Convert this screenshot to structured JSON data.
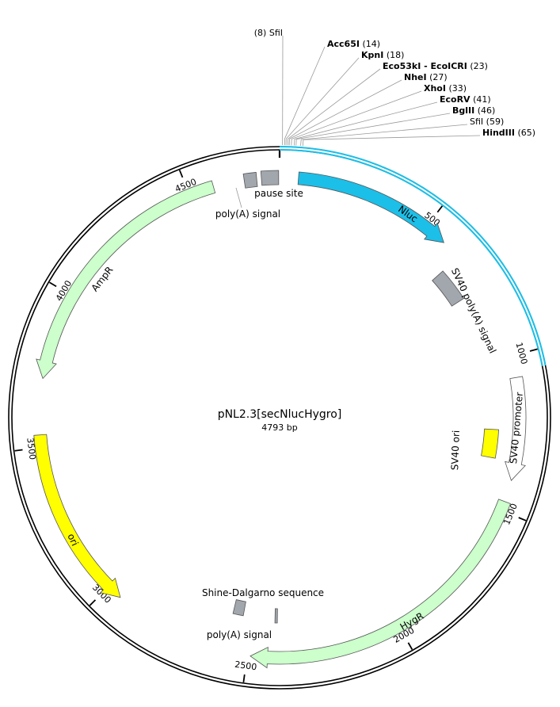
{
  "plasmid": {
    "name": "pNL2.3[secNlucHygro]",
    "length_label": "4793 bp",
    "length": 4793
  },
  "restriction_sites": [
    {
      "name": "SfiI",
      "pos": 8,
      "pos_label": "(8)",
      "bold": false
    },
    {
      "name": "Acc65I",
      "pos": 14,
      "pos_label": "(14)",
      "bold": true
    },
    {
      "name": "KpnI",
      "pos": 18,
      "pos_label": "(18)",
      "bold": true
    },
    {
      "name": "Eco53kI - EcoICRI",
      "pos": 23,
      "pos_label": "(23)",
      "bold": true
    },
    {
      "name": "NheI",
      "pos": 27,
      "pos_label": "(27)",
      "bold": true
    },
    {
      "name": "XhoI",
      "pos": 33,
      "pos_label": "(33)",
      "bold": true
    },
    {
      "name": "EcoRV",
      "pos": 41,
      "pos_label": "(41)",
      "bold": true
    },
    {
      "name": "BglII",
      "pos": 46,
      "pos_label": "(46)",
      "bold": true
    },
    {
      "name": "SfiI",
      "pos": 59,
      "pos_label": "(59)",
      "bold": false
    },
    {
      "name": "HindIII",
      "pos": 65,
      "pos_label": "(65)",
      "bold": true
    }
  ],
  "features": [
    {
      "label": "Nluc",
      "start": 60,
      "end": 575,
      "type": "arrow",
      "color": "#1cbfe8"
    },
    {
      "label": "SV40 poly(A) signal",
      "start": 640,
      "end": 760,
      "type": "box",
      "color": "#a2a7ae"
    },
    {
      "label": "SV40 promoter",
      "start": 1070,
      "end": 1400,
      "type": "arrow",
      "color": "#ffffff"
    },
    {
      "label": "SV40 ori",
      "start": 1240,
      "end": 1340,
      "type": "box",
      "color": "#ffff00"
    },
    {
      "label": "HygR",
      "start": 1470,
      "end": 2490,
      "type": "arrow",
      "color": "#ccffcc"
    },
    {
      "label": "Shine-Dalgarno sequence",
      "start": 2405,
      "end": 2414,
      "type": "box",
      "color": "#a2a7ae"
    },
    {
      "label": "poly(A) signal",
      "start": 2535,
      "end": 2575,
      "type": "box",
      "color": "#a2a7ae"
    },
    {
      "label": "ori",
      "start": 2950,
      "end": 3540,
      "type": "arrow_ccw",
      "color": "#ffff00"
    },
    {
      "label": "AmpR",
      "start": 3720,
      "end": 4580,
      "type": "arrow_ccw",
      "color": "#ccffcc"
    },
    {
      "label": "poly(A) signal",
      "start": 4680,
      "end": 4720,
      "type": "box",
      "color": "#a2a7ae"
    },
    {
      "label": "pause site",
      "start": 4735,
      "end": 4790,
      "type": "box",
      "color": "#a2a7ae"
    }
  ],
  "highlight_region": {
    "start": 0,
    "end": 1050,
    "color": "#1cbfe8"
  },
  "ticks": [
    {
      "pos": 500,
      "label": "500"
    },
    {
      "pos": 1000,
      "label": "1000"
    },
    {
      "pos": 1500,
      "label": "1500"
    },
    {
      "pos": 2000,
      "label": "2000"
    },
    {
      "pos": 2500,
      "label": "2500"
    },
    {
      "pos": 3000,
      "label": "3000"
    },
    {
      "pos": 3500,
      "label": "3500"
    },
    {
      "pos": 4000,
      "label": "4000"
    },
    {
      "pos": 4500,
      "label": "4500"
    }
  ]
}
